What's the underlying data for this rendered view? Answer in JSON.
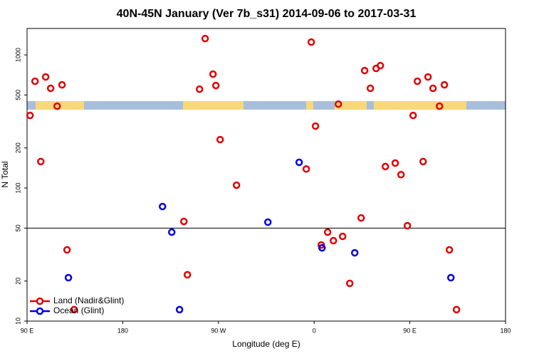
{
  "chart_data": {
    "type": "scatter",
    "title": "40N-45N January (Ver 7b_s31)   2014-09-06 to 2017-03-31",
    "xlabel": "Longitude (deg E)",
    "ylabel": "N Total",
    "xlim": [
      -270,
      180
    ],
    "xticks": [
      {
        "value": -270,
        "label": "90 E"
      },
      {
        "value": -180,
        "label": "180"
      },
      {
        "value": -90,
        "label": "90 W"
      },
      0,
      {
        "value": 90,
        "label": "90 E"
      },
      {
        "value": 180,
        "label": "180"
      }
    ],
    "ylim": [
      10,
      1580
    ],
    "yscale": "log",
    "yticks": [
      10,
      20,
      50,
      100,
      200,
      500,
      1000
    ],
    "hline": 50,
    "legend": "bottom-left",
    "series": [
      {
        "name": "Land (Nadir&Glint)",
        "color": "#e00000",
        "x": [
          -267.2,
          -262.5,
          -257.1,
          -252.5,
          -247.8,
          -241.7,
          -237.1,
          -232.4,
          -225.7,
          -122.5,
          -119.2,
          -107.8,
          -102.5,
          -95.1,
          -92.4,
          -88.4,
          -73.0,
          -7.4,
          -2.7,
          1.3,
          6.7,
          12.7,
          18.1,
          22.8,
          26.8,
          33.5,
          44.2,
          47.5,
          52.9,
          58.3,
          62.3,
          67.0,
          76.3,
          81.7,
          87.7,
          93.1,
          97.1,
          102.5,
          107.1,
          111.8,
          117.9,
          122.5,
          127.2,
          133.9
        ],
        "values": [
          351,
          634,
          158,
          683,
          561,
          412,
          596,
          34.3,
          12.2,
          56.1,
          22.3,
          553,
          1327,
          717,
          589,
          231,
          105,
          139,
          1248,
          292,
          37.3,
          46.6,
          40.2,
          427,
          43.3,
          19.2,
          59.6,
          763,
          561,
          791,
          831,
          145,
          154,
          126,
          52.1,
          351,
          634,
          158,
          683,
          561,
          412,
          596,
          34.3,
          12.2
        ]
      },
      {
        "name": "Ocean (Glint)",
        "color": "#0000e0",
        "x": [
          -231.1,
          -142.6,
          -133.9,
          -126.6,
          -43.5,
          -14.1,
          7.4,
          38.2,
          128.6
        ],
        "values": [
          21.2,
          72.6,
          46.6,
          12.2,
          55.4,
          156,
          35.5,
          32.6,
          21.2
        ]
      }
    ]
  }
}
